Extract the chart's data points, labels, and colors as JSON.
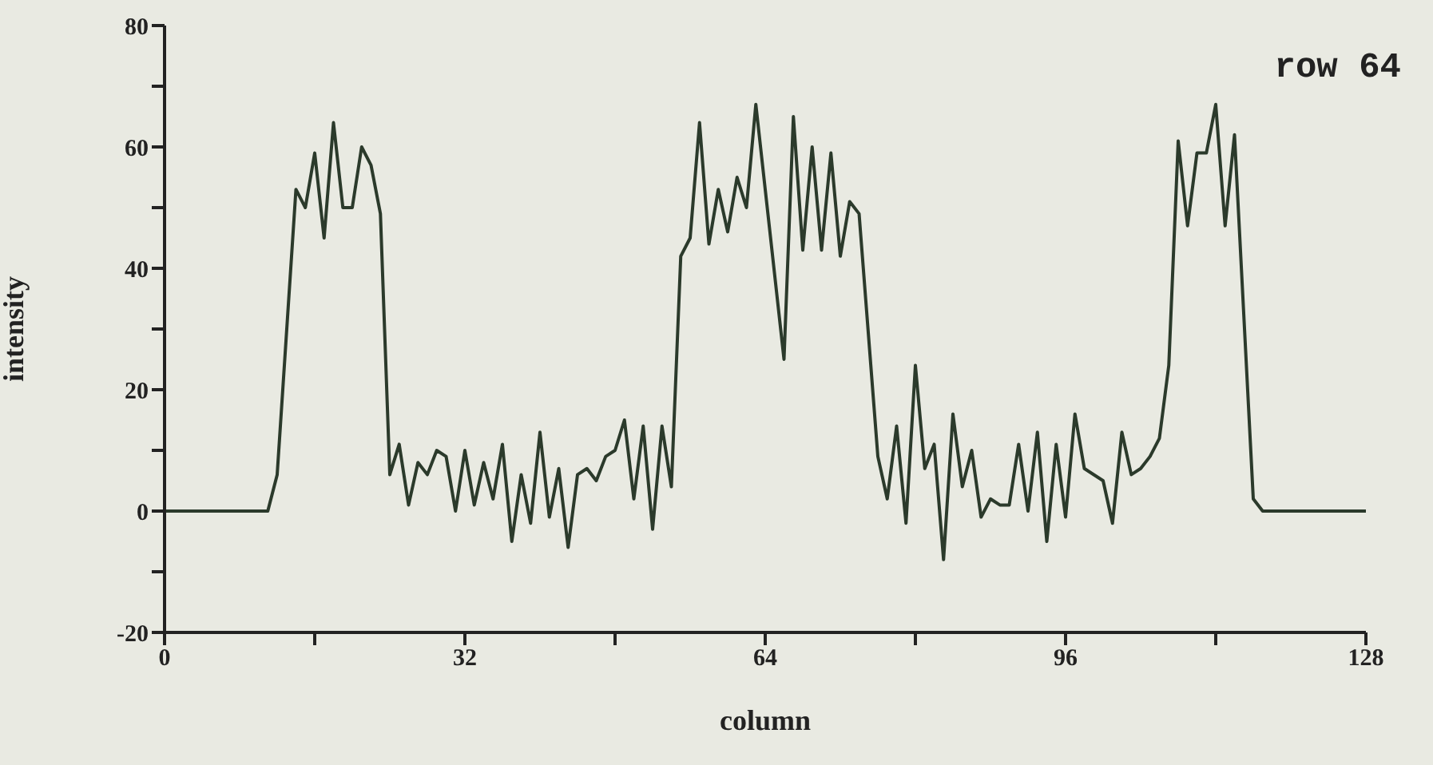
{
  "chart_data": {
    "type": "line",
    "xlabel": "column",
    "ylabel": "intensity",
    "annotations": [
      "row 64"
    ],
    "xlim": [
      0,
      128
    ],
    "xticks": [
      0,
      {
        "value": 16,
        "label": null
      },
      32,
      {
        "value": 48,
        "label": null
      },
      64,
      {
        "value": 80,
        "label": null
      },
      96,
      {
        "value": 112,
        "label": null
      },
      128
    ],
    "ylim": [
      -20,
      80
    ],
    "yticks": [
      -20,
      {
        "value": -10,
        "label": null
      },
      0,
      {
        "value": 10,
        "label": null
      },
      20,
      {
        "value": 30,
        "label": null
      },
      40,
      {
        "value": 50,
        "label": null
      },
      60,
      {
        "value": 70,
        "label": null
      },
      80
    ],
    "grid": false,
    "legend": false,
    "marker": "none",
    "line_style": "solid",
    "series": [
      {
        "color": "#2b3a2b",
        "x": [
          0,
          11,
          12,
          14,
          15,
          16,
          17,
          18,
          19,
          20,
          21,
          22,
          23,
          24,
          25,
          26,
          27,
          28,
          29,
          30,
          31,
          32,
          33,
          34,
          35,
          36,
          37,
          38,
          39,
          40,
          41,
          42,
          43,
          44,
          45,
          46,
          47,
          48,
          49,
          50,
          51,
          52,
          53,
          54,
          55,
          56,
          57,
          58,
          59,
          60,
          61,
          62,
          63,
          66,
          67,
          68,
          69,
          70,
          71,
          72,
          73,
          74,
          76,
          77,
          78,
          79,
          80,
          81,
          82,
          83,
          84,
          85,
          86,
          87,
          88,
          89,
          90,
          91,
          92,
          93,
          94,
          95,
          96,
          97,
          98,
          100,
          101,
          102,
          103,
          104,
          105,
          106,
          107,
          108,
          109,
          110,
          111,
          112,
          113,
          114,
          116,
          117,
          128
        ],
        "values": [
          0,
          0,
          6,
          53,
          50,
          59,
          45,
          64,
          50,
          50,
          60,
          57,
          49,
          6,
          11,
          1,
          8,
          6,
          10,
          9,
          0,
          10,
          1,
          8,
          2,
          11,
          -5,
          6,
          -2,
          13,
          -1,
          7,
          -6,
          6,
          7,
          5,
          9,
          10,
          15,
          2,
          14,
          -3,
          14,
          4,
          42,
          45,
          64,
          44,
          53,
          46,
          55,
          50,
          67,
          25,
          65,
          43,
          60,
          43,
          59,
          42,
          51,
          49,
          9,
          2,
          14,
          -2,
          24,
          7,
          11,
          -8,
          16,
          4,
          10,
          -1,
          2,
          1,
          1,
          11,
          0,
          13,
          -5,
          11,
          -1,
          16,
          7,
          5,
          -2,
          13,
          6,
          7,
          9,
          12,
          24,
          61,
          47,
          59,
          59,
          67,
          47,
          62,
          2,
          0,
          0
        ]
      }
    ]
  }
}
